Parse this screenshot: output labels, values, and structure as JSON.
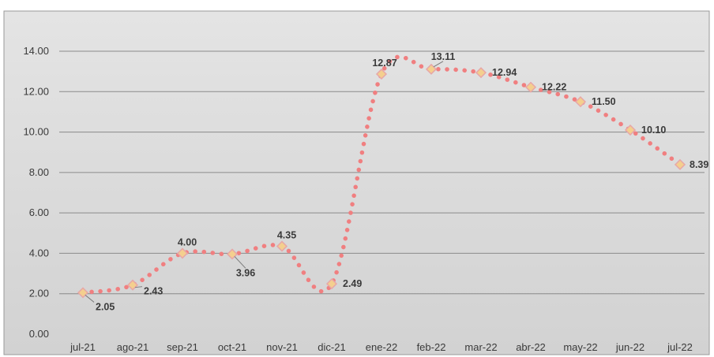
{
  "chart_data": {
    "type": "line",
    "title": "",
    "xlabel": "",
    "ylabel": "",
    "categories": [
      "jul-21",
      "ago-21",
      "sep-21",
      "oct-21",
      "nov-21",
      "dic-21",
      "ene-22",
      "feb-22",
      "mar-22",
      "abr-22",
      "may-22",
      "jun-22",
      "jul-22"
    ],
    "values": [
      2.05,
      2.43,
      4.0,
      3.96,
      4.35,
      2.49,
      12.87,
      13.11,
      12.94,
      12.22,
      11.5,
      10.1,
      8.39
    ],
    "data_labels": [
      "2.05",
      "2.43",
      "4.00",
      "3.96",
      "4.35",
      "2.49",
      "12.87",
      "13.11",
      "12.94",
      "12.22",
      "11.50",
      "10.10",
      "8.39"
    ],
    "ylim": [
      0,
      14
    ],
    "y_ticks": [
      "0.00",
      "2.00",
      "4.00",
      "6.00",
      "8.00",
      "10.00",
      "12.00",
      "14.00"
    ],
    "grid": true,
    "legend": "none",
    "line_style": "dotted smooth",
    "colors": {
      "line": "#f07f80",
      "marker_fill": "#f4cf8e",
      "marker_stroke": "#e7a7a7",
      "grid": "#8a8a8a",
      "plot_background": "#d9d9d9",
      "page_background": "#ffffff",
      "text": "#3a3a3a"
    }
  }
}
